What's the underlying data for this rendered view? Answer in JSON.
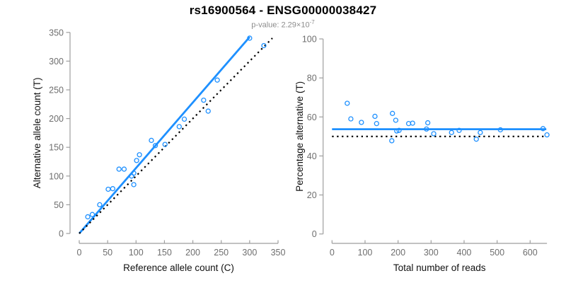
{
  "header": {
    "title": "rs16900564 - ENSG00000038427",
    "subtitle_prefix": "p-value: 2.29×10",
    "subtitle_exponent": "-7"
  },
  "colors": {
    "accent_blue": "#1E90FF",
    "identity_black": "#000000",
    "axis_gray": "#9E9E9E",
    "tick_text_gray": "#6E6E6E",
    "label_text": "#111111",
    "subtitle_gray": "#8C8C8C"
  },
  "chart_data": [
    {
      "type": "scatter",
      "panel": "allele-counts",
      "xlabel": "Reference allele count (C)",
      "ylabel": "Alternative allele count (T)",
      "xlim": [
        0,
        350
      ],
      "ylim": [
        0,
        350
      ],
      "xticks": [
        0,
        50,
        100,
        150,
        200,
        250,
        300,
        350
      ],
      "yticks": [
        0,
        50,
        100,
        150,
        200,
        250,
        300,
        350
      ],
      "grid": false,
      "points": [
        [
          15,
          29
        ],
        [
          23,
          33
        ],
        [
          36,
          50
        ],
        [
          51,
          77
        ],
        [
          59,
          78
        ],
        [
          70,
          112
        ],
        [
          79,
          112
        ],
        [
          92,
          100
        ],
        [
          96,
          105
        ],
        [
          96,
          85
        ],
        [
          101,
          127
        ],
        [
          106,
          137
        ],
        [
          127,
          162
        ],
        [
          134,
          153
        ],
        [
          151,
          155
        ],
        [
          176,
          186
        ],
        [
          185,
          199
        ],
        [
          219,
          232
        ],
        [
          227,
          213
        ],
        [
          243,
          267
        ],
        [
          300,
          340
        ],
        [
          325,
          327
        ]
      ],
      "lines": [
        {
          "name": "fit-line",
          "x": [
            0,
            300
          ],
          "y": [
            0,
            342
          ],
          "style": "solid",
          "color_key": "accent_blue"
        },
        {
          "name": "identity-line",
          "x": [
            0,
            340
          ],
          "y": [
            0,
            340
          ],
          "style": "dotted",
          "color_key": "identity_black"
        }
      ]
    },
    {
      "type": "scatter",
      "panel": "percentage-vs-reads",
      "xlabel": "Total number of reads",
      "ylabel": "Percentage alternative (T)",
      "xlim": [
        0,
        651
      ],
      "ylim": [
        0,
        100
      ],
      "xticks": [
        0,
        100,
        200,
        300,
        400,
        500,
        600
      ],
      "yticks": [
        0,
        20,
        40,
        60,
        80,
        100
      ],
      "grid": false,
      "points": [
        [
          46,
          67
        ],
        [
          57,
          59
        ],
        [
          89,
          57.2
        ],
        [
          130,
          60.3
        ],
        [
          135,
          56.6
        ],
        [
          181,
          47.8
        ],
        [
          183,
          61.8
        ],
        [
          193,
          58.3
        ],
        [
          196,
          52.8
        ],
        [
          203,
          53.1
        ],
        [
          232,
          56.6
        ],
        [
          244,
          56.8
        ],
        [
          286,
          53.8
        ],
        [
          290,
          57
        ],
        [
          308,
          51.4
        ],
        [
          362,
          52
        ],
        [
          385,
          53.1
        ],
        [
          437,
          48.6
        ],
        [
          449,
          52
        ],
        [
          510,
          53.4
        ],
        [
          639,
          54
        ],
        [
          651,
          50.8
        ]
      ],
      "lines": [
        {
          "name": "mean-line",
          "x": [
            0,
            649
          ],
          "y": [
            53.7,
            53.7
          ],
          "style": "solid",
          "color_key": "accent_blue"
        },
        {
          "name": "expected-line",
          "x": [
            0,
            645
          ],
          "y": [
            50,
            50
          ],
          "style": "dotted",
          "color_key": "identity_black"
        }
      ]
    }
  ]
}
